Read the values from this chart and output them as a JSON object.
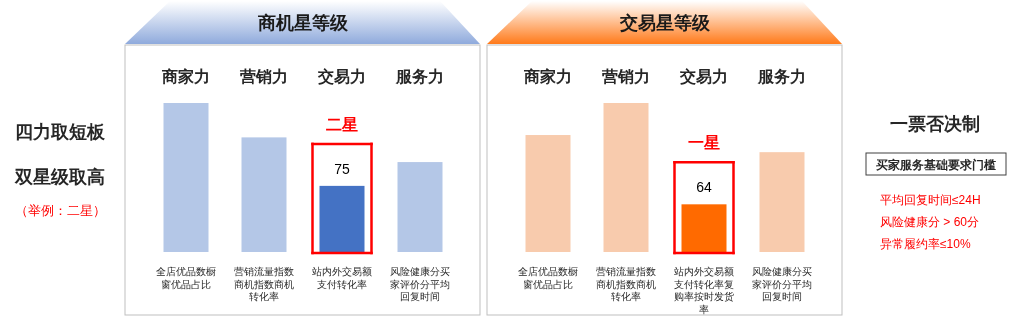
{
  "chart_data": [
    {
      "type": "other",
      "annotations": [
        "四力取短板",
        "双星级取高",
        "（举例：二星）"
      ]
    },
    {
      "type": "bar",
      "title": "商机星等级",
      "categories": [
        "商家力",
        "营销力",
        "交易力",
        "服务力"
      ],
      "values": [
        169,
        130,
        75,
        102
      ],
      "colors": [
        "#b4c7e7",
        "#b4c7e7",
        "#4472c4",
        "#b4c7e7"
      ],
      "value_labels": [
        null,
        null,
        "75",
        null
      ],
      "annotations": [
        "二星",
        "全店优品数橱窗优品占比",
        "营销流量指数商机指数商机转化率",
        "站内外交易额支付转化率",
        "风险健康分买家评价分平均回复时间"
      ]
    },
    {
      "type": "bar",
      "title": "交易星等级",
      "categories": [
        "商家力",
        "营销力",
        "交易力",
        "服务力"
      ],
      "values": [
        157,
        200,
        64,
        134
      ],
      "colors": [
        "#f8cbad",
        "#f8cbad",
        "#ff6a00",
        "#f8cbad"
      ],
      "value_labels": [
        null,
        null,
        "64",
        null
      ],
      "annotations": [
        "一星",
        "全店优品数橱窗优品占比",
        "营销流量指数商机指数商机转化率",
        "站内外交易额支付转化率复购率按时发货率",
        "风险健康分买家评价分平均回复时间"
      ]
    },
    {
      "type": "other",
      "title": "一票否决制",
      "subtitle": "买家服务基础要求门槛",
      "annotations": [
        "平均回复时间≤24H",
        "风险健康分 > 60分",
        "异常履约率≤10%"
      ]
    }
  ]
}
